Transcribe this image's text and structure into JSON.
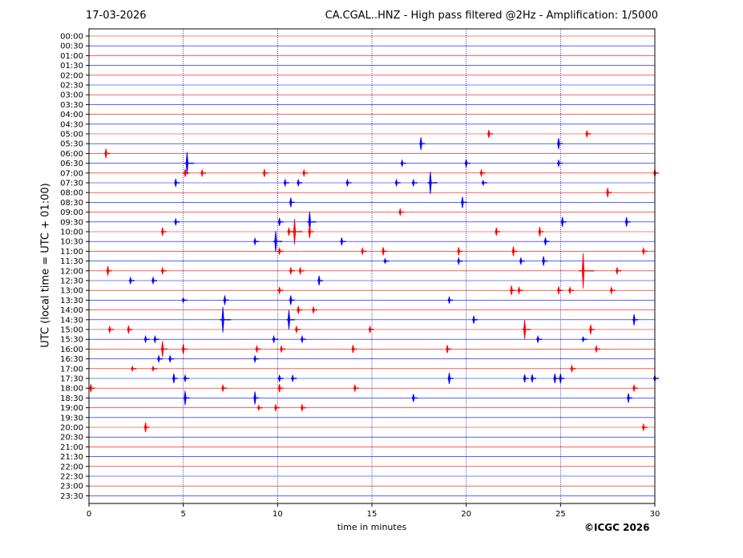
{
  "header": {
    "date": "17-03-2026",
    "title": "CA.CGAL..HNZ - High pass filtered @2Hz - Amplification: 1/5000"
  },
  "footer": {
    "copyright": "©ICGC 2026"
  },
  "colors": {
    "odd_trace": "#ff0000",
    "even_trace": "#0000ff",
    "frame": "#000000",
    "grid": "#000080"
  },
  "chart_data": {
    "type": "line",
    "title": "CA.CGAL..HNZ - High pass filtered @2Hz - Amplification: 1/5000",
    "xlabel": "time in minutes",
    "ylabel": "UTC (local time = UTC + 01:00)",
    "xlim": [
      0,
      30
    ],
    "x_ticks": [
      0,
      5,
      10,
      15,
      20,
      25,
      30
    ],
    "vertical_gridlines_at": [
      5,
      10,
      15,
      20,
      25
    ],
    "rows": [
      "00:00",
      "00:30",
      "01:00",
      "01:30",
      "02:00",
      "02:30",
      "03:00",
      "03:30",
      "04:00",
      "04:30",
      "05:00",
      "05:30",
      "06:00",
      "06:30",
      "07:00",
      "07:30",
      "08:00",
      "08:30",
      "09:00",
      "09:30",
      "10:00",
      "10:30",
      "11:00",
      "11:30",
      "12:00",
      "12:30",
      "13:00",
      "13:30",
      "14:00",
      "14:30",
      "15:00",
      "15:30",
      "16:00",
      "16:30",
      "17:00",
      "17:30",
      "18:00",
      "18:30",
      "19:00",
      "19:30",
      "20:00",
      "20:30",
      "21:00",
      "21:30",
      "22:00",
      "22:30",
      "23:00",
      "23:30"
    ],
    "row_colors": "alternating red/blue starting red",
    "events": [
      {
        "row": "05:00",
        "minute": 21.2,
        "amp": 5
      },
      {
        "row": "05:00",
        "minute": 26.4,
        "amp": 4
      },
      {
        "row": "05:30",
        "minute": 17.6,
        "amp": 8
      },
      {
        "row": "05:30",
        "minute": 24.9,
        "amp": 7
      },
      {
        "row": "06:00",
        "minute": 0.9,
        "amp": 6
      },
      {
        "row": "06:30",
        "minute": 5.2,
        "amp": 14
      },
      {
        "row": "06:30",
        "minute": 16.6,
        "amp": 4
      },
      {
        "row": "06:30",
        "minute": 20.0,
        "amp": 5
      },
      {
        "row": "06:30",
        "minute": 24.9,
        "amp": 4
      },
      {
        "row": "07:00",
        "minute": 5.1,
        "amp": 5
      },
      {
        "row": "07:00",
        "minute": 6.0,
        "amp": 4
      },
      {
        "row": "07:00",
        "minute": 9.3,
        "amp": 5
      },
      {
        "row": "07:00",
        "minute": 11.4,
        "amp": 4
      },
      {
        "row": "07:00",
        "minute": 20.8,
        "amp": 4
      },
      {
        "row": "07:00",
        "minute": 30.0,
        "amp": 5
      },
      {
        "row": "07:30",
        "minute": 4.6,
        "amp": 5
      },
      {
        "row": "07:30",
        "minute": 10.4,
        "amp": 4
      },
      {
        "row": "07:30",
        "minute": 11.1,
        "amp": 4
      },
      {
        "row": "07:30",
        "minute": 13.7,
        "amp": 4
      },
      {
        "row": "07:30",
        "minute": 16.3,
        "amp": 4
      },
      {
        "row": "07:30",
        "minute": 17.2,
        "amp": 4
      },
      {
        "row": "07:30",
        "minute": 18.1,
        "amp": 14
      },
      {
        "row": "07:30",
        "minute": 20.9,
        "amp": 3
      },
      {
        "row": "08:00",
        "minute": 27.5,
        "amp": 6
      },
      {
        "row": "08:30",
        "minute": 10.7,
        "amp": 6
      },
      {
        "row": "08:30",
        "minute": 19.8,
        "amp": 7
      },
      {
        "row": "09:00",
        "minute": 16.5,
        "amp": 4
      },
      {
        "row": "09:30",
        "minute": 4.6,
        "amp": 4
      },
      {
        "row": "09:30",
        "minute": 10.1,
        "amp": 5
      },
      {
        "row": "09:30",
        "minute": 11.7,
        "amp": 13
      },
      {
        "row": "09:30",
        "minute": 25.1,
        "amp": 6
      },
      {
        "row": "09:30",
        "minute": 28.5,
        "amp": 6
      },
      {
        "row": "10:00",
        "minute": 3.9,
        "amp": 5
      },
      {
        "row": "10:00",
        "minute": 10.6,
        "amp": 5
      },
      {
        "row": "10:00",
        "minute": 10.9,
        "amp": 16
      },
      {
        "row": "10:00",
        "minute": 11.7,
        "amp": 8
      },
      {
        "row": "10:00",
        "minute": 21.6,
        "amp": 5
      },
      {
        "row": "10:00",
        "minute": 23.9,
        "amp": 6
      },
      {
        "row": "10:30",
        "minute": 8.8,
        "amp": 4
      },
      {
        "row": "10:30",
        "minute": 9.9,
        "amp": 13
      },
      {
        "row": "10:30",
        "minute": 13.4,
        "amp": 5
      },
      {
        "row": "10:30",
        "minute": 24.2,
        "amp": 5
      },
      {
        "row": "11:00",
        "minute": 10.1,
        "amp": 4
      },
      {
        "row": "11:00",
        "minute": 14.5,
        "amp": 4
      },
      {
        "row": "11:00",
        "minute": 15.6,
        "amp": 5
      },
      {
        "row": "11:00",
        "minute": 19.6,
        "amp": 5
      },
      {
        "row": "11:00",
        "minute": 22.5,
        "amp": 6
      },
      {
        "row": "11:00",
        "minute": 29.4,
        "amp": 4
      },
      {
        "row": "11:30",
        "minute": 15.7,
        "amp": 3
      },
      {
        "row": "11:30",
        "minute": 19.6,
        "amp": 4
      },
      {
        "row": "11:30",
        "minute": 22.9,
        "amp": 4
      },
      {
        "row": "11:30",
        "minute": 24.1,
        "amp": 6
      },
      {
        "row": "12:00",
        "minute": 1.0,
        "amp": 6
      },
      {
        "row": "12:00",
        "minute": 3.9,
        "amp": 4
      },
      {
        "row": "12:00",
        "minute": 10.7,
        "amp": 4
      },
      {
        "row": "12:00",
        "minute": 11.2,
        "amp": 4
      },
      {
        "row": "12:00",
        "minute": 26.2,
        "amp": 22
      },
      {
        "row": "12:00",
        "minute": 28.0,
        "amp": 4
      },
      {
        "row": "12:30",
        "minute": 2.2,
        "amp": 4
      },
      {
        "row": "12:30",
        "minute": 3.4,
        "amp": 4
      },
      {
        "row": "12:30",
        "minute": 12.2,
        "amp": 6
      },
      {
        "row": "13:00",
        "minute": 10.1,
        "amp": 4
      },
      {
        "row": "13:00",
        "minute": 22.4,
        "amp": 6
      },
      {
        "row": "13:00",
        "minute": 22.8,
        "amp": 4
      },
      {
        "row": "13:00",
        "minute": 24.9,
        "amp": 5
      },
      {
        "row": "13:00",
        "minute": 25.5,
        "amp": 4
      },
      {
        "row": "13:00",
        "minute": 27.7,
        "amp": 4
      },
      {
        "row": "13:30",
        "minute": 5.0,
        "amp": 3
      },
      {
        "row": "13:30",
        "minute": 7.2,
        "amp": 6
      },
      {
        "row": "13:30",
        "minute": 10.7,
        "amp": 6
      },
      {
        "row": "13:30",
        "minute": 19.1,
        "amp": 4
      },
      {
        "row": "14:00",
        "minute": 11.1,
        "amp": 5
      },
      {
        "row": "14:00",
        "minute": 11.9,
        "amp": 4
      },
      {
        "row": "14:30",
        "minute": 7.1,
        "amp": 16
      },
      {
        "row": "14:30",
        "minute": 10.6,
        "amp": 12
      },
      {
        "row": "14:30",
        "minute": 20.4,
        "amp": 5
      },
      {
        "row": "14:30",
        "minute": 28.9,
        "amp": 7
      },
      {
        "row": "15:00",
        "minute": 1.1,
        "amp": 4
      },
      {
        "row": "15:00",
        "minute": 2.1,
        "amp": 5
      },
      {
        "row": "15:00",
        "minute": 11.0,
        "amp": 4
      },
      {
        "row": "15:00",
        "minute": 14.9,
        "amp": 4
      },
      {
        "row": "15:00",
        "minute": 23.1,
        "amp": 12
      },
      {
        "row": "15:00",
        "minute": 26.6,
        "amp": 6
      },
      {
        "row": "15:30",
        "minute": 3.0,
        "amp": 4
      },
      {
        "row": "15:30",
        "minute": 3.5,
        "amp": 4
      },
      {
        "row": "15:30",
        "minute": 9.8,
        "amp": 4
      },
      {
        "row": "15:30",
        "minute": 11.3,
        "amp": 4
      },
      {
        "row": "15:30",
        "minute": 23.8,
        "amp": 4
      },
      {
        "row": "15:30",
        "minute": 26.2,
        "amp": 3
      },
      {
        "row": "16:00",
        "minute": 3.9,
        "amp": 10
      },
      {
        "row": "16:00",
        "minute": 5.0,
        "amp": 6
      },
      {
        "row": "16:00",
        "minute": 8.9,
        "amp": 4
      },
      {
        "row": "16:00",
        "minute": 10.2,
        "amp": 4
      },
      {
        "row": "16:00",
        "minute": 14.0,
        "amp": 5
      },
      {
        "row": "16:00",
        "minute": 19.0,
        "amp": 5
      },
      {
        "row": "16:00",
        "minute": 26.9,
        "amp": 4
      },
      {
        "row": "16:30",
        "minute": 3.7,
        "amp": 4
      },
      {
        "row": "16:30",
        "minute": 4.3,
        "amp": 4
      },
      {
        "row": "16:30",
        "minute": 8.8,
        "amp": 4
      },
      {
        "row": "17:00",
        "minute": 2.3,
        "amp": 3
      },
      {
        "row": "17:00",
        "minute": 3.4,
        "amp": 3
      },
      {
        "row": "17:00",
        "minute": 25.6,
        "amp": 4
      },
      {
        "row": "17:30",
        "minute": 4.5,
        "amp": 6
      },
      {
        "row": "17:30",
        "minute": 5.1,
        "amp": 4
      },
      {
        "row": "17:30",
        "minute": 10.1,
        "amp": 4
      },
      {
        "row": "17:30",
        "minute": 10.8,
        "amp": 4
      },
      {
        "row": "17:30",
        "minute": 19.1,
        "amp": 7
      },
      {
        "row": "17:30",
        "minute": 23.1,
        "amp": 5
      },
      {
        "row": "17:30",
        "minute": 23.5,
        "amp": 5
      },
      {
        "row": "17:30",
        "minute": 24.7,
        "amp": 6
      },
      {
        "row": "17:30",
        "minute": 25.0,
        "amp": 6
      },
      {
        "row": "17:30",
        "minute": 30.0,
        "amp": 4
      },
      {
        "row": "18:00",
        "minute": 0.1,
        "amp": 5
      },
      {
        "row": "18:00",
        "minute": 7.1,
        "amp": 4
      },
      {
        "row": "18:00",
        "minute": 10.1,
        "amp": 5
      },
      {
        "row": "18:00",
        "minute": 14.1,
        "amp": 4
      },
      {
        "row": "18:00",
        "minute": 28.9,
        "amp": 4
      },
      {
        "row": "18:30",
        "minute": 5.1,
        "amp": 9
      },
      {
        "row": "18:30",
        "minute": 8.8,
        "amp": 8
      },
      {
        "row": "18:30",
        "minute": 17.2,
        "amp": 5
      },
      {
        "row": "18:30",
        "minute": 28.6,
        "amp": 6
      },
      {
        "row": "19:00",
        "minute": 9.0,
        "amp": 3
      },
      {
        "row": "19:00",
        "minute": 9.9,
        "amp": 4
      },
      {
        "row": "19:00",
        "minute": 11.3,
        "amp": 4
      },
      {
        "row": "20:00",
        "minute": 3.0,
        "amp": 6
      },
      {
        "row": "20:00",
        "minute": 29.4,
        "amp": 4
      }
    ]
  }
}
